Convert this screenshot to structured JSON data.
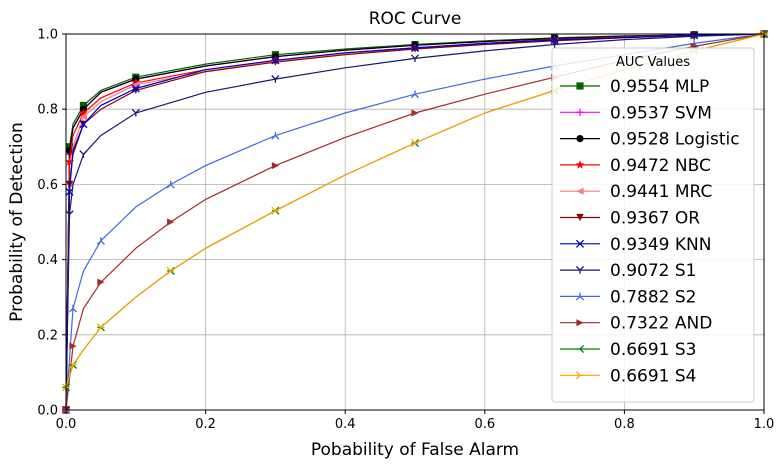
{
  "chart_data": {
    "type": "line",
    "title": "ROC Curve",
    "xlabel": "Pobability of False Alarm",
    "ylabel": "Probability of Detection",
    "xlim": [
      0,
      1
    ],
    "ylim": [
      0,
      1
    ],
    "xticks": [
      "0.0",
      "0.2",
      "0.4",
      "0.6",
      "0.8",
      "1.0"
    ],
    "yticks": [
      "0.0",
      "0.2",
      "0.4",
      "0.6",
      "0.8",
      "1.0"
    ],
    "grid": true,
    "legend": {
      "title": "AUC Values",
      "placement": "right"
    },
    "series": [
      {
        "name": "0.9554 MLP",
        "color": "#006400",
        "marker": "square",
        "x": [
          0,
          0.005,
          0.01,
          0.025,
          0.05,
          0.1,
          0.2,
          0.3,
          0.4,
          0.5,
          0.6,
          0.7,
          0.8,
          0.9,
          1.0
        ],
        "y": [
          0,
          0.7,
          0.76,
          0.81,
          0.85,
          0.885,
          0.92,
          0.945,
          0.96,
          0.972,
          0.982,
          0.99,
          0.995,
          0.998,
          1.0
        ]
      },
      {
        "name": "0.9537 SVM",
        "color": "#ff00ff",
        "marker": "plus",
        "x": [
          0,
          0.005,
          0.01,
          0.025,
          0.05,
          0.1,
          0.2,
          0.3,
          0.4,
          0.5,
          0.6,
          0.7,
          0.8,
          0.9,
          1.0
        ],
        "y": [
          0,
          0.68,
          0.75,
          0.8,
          0.845,
          0.88,
          0.915,
          0.94,
          0.957,
          0.97,
          0.98,
          0.988,
          0.994,
          0.998,
          1.0
        ]
      },
      {
        "name": "0.9528 Logistic",
        "color": "#000000",
        "marker": "circle",
        "x": [
          0,
          0.005,
          0.01,
          0.025,
          0.05,
          0.1,
          0.2,
          0.3,
          0.4,
          0.5,
          0.6,
          0.7,
          0.8,
          0.9,
          1.0
        ],
        "y": [
          0,
          0.69,
          0.75,
          0.8,
          0.845,
          0.88,
          0.915,
          0.94,
          0.957,
          0.97,
          0.98,
          0.988,
          0.994,
          0.998,
          1.0
        ]
      },
      {
        "name": "0.9472 NBC",
        "color": "#ff0000",
        "marker": "star",
        "x": [
          0,
          0.005,
          0.01,
          0.025,
          0.05,
          0.1,
          0.2,
          0.3,
          0.4,
          0.5,
          0.6,
          0.7,
          0.8,
          0.9,
          1.0
        ],
        "y": [
          0,
          0.66,
          0.73,
          0.79,
          0.83,
          0.87,
          0.905,
          0.93,
          0.95,
          0.963,
          0.975,
          0.985,
          0.992,
          0.997,
          1.0
        ]
      },
      {
        "name": "0.9441 MRC",
        "color": "#f08080",
        "marker": "triangle-left",
        "x": [
          0,
          0.005,
          0.01,
          0.025,
          0.05,
          0.1,
          0.2,
          0.3,
          0.4,
          0.5,
          0.6,
          0.7,
          0.8,
          0.9,
          1.0
        ],
        "y": [
          0,
          0.6,
          0.7,
          0.78,
          0.82,
          0.865,
          0.9,
          0.928,
          0.948,
          0.962,
          0.974,
          0.984,
          0.991,
          0.997,
          1.0
        ]
      },
      {
        "name": "0.9367 OR",
        "color": "#8b0000",
        "marker": "triangle-down",
        "x": [
          0,
          0.005,
          0.01,
          0.025,
          0.05,
          0.1,
          0.2,
          0.3,
          0.4,
          0.5,
          0.6,
          0.7,
          0.8,
          0.9,
          1.0
        ],
        "y": [
          0,
          0.6,
          0.68,
          0.76,
          0.8,
          0.85,
          0.9,
          0.925,
          0.945,
          0.96,
          0.972,
          0.982,
          0.99,
          0.996,
          1.0
        ]
      },
      {
        "name": "0.9349 KNN",
        "color": "#0000cd",
        "marker": "x",
        "x": [
          0,
          0.005,
          0.01,
          0.025,
          0.05,
          0.1,
          0.2,
          0.3,
          0.4,
          0.5,
          0.6,
          0.7,
          0.8,
          0.9,
          1.0
        ],
        "y": [
          0,
          0.58,
          0.69,
          0.76,
          0.81,
          0.855,
          0.905,
          0.93,
          0.95,
          0.963,
          0.975,
          0.984,
          0.991,
          0.997,
          1.0
        ]
      },
      {
        "name": "0.9072 S1",
        "color": "#191970",
        "marker": "tri-down",
        "x": [
          0,
          0.005,
          0.01,
          0.025,
          0.05,
          0.1,
          0.2,
          0.3,
          0.4,
          0.5,
          0.6,
          0.7,
          0.8,
          0.9,
          1.0
        ],
        "y": [
          0,
          0.52,
          0.6,
          0.68,
          0.73,
          0.79,
          0.845,
          0.88,
          0.91,
          0.935,
          0.955,
          0.972,
          0.985,
          0.994,
          1.0
        ]
      },
      {
        "name": "0.7882 S2",
        "color": "#4169e1",
        "marker": "tri-up",
        "x": [
          0,
          0.01,
          0.025,
          0.05,
          0.1,
          0.15,
          0.2,
          0.3,
          0.4,
          0.5,
          0.6,
          0.7,
          0.8,
          0.9,
          1.0
        ],
        "y": [
          0,
          0.27,
          0.37,
          0.45,
          0.54,
          0.6,
          0.65,
          0.73,
          0.79,
          0.84,
          0.88,
          0.915,
          0.945,
          0.975,
          1.0
        ]
      },
      {
        "name": "0.7322 AND",
        "color": "#a52a2a",
        "marker": "triangle-right",
        "x": [
          0,
          0.01,
          0.025,
          0.05,
          0.1,
          0.15,
          0.2,
          0.3,
          0.4,
          0.5,
          0.6,
          0.7,
          0.8,
          0.9,
          1.0
        ],
        "y": [
          0,
          0.17,
          0.27,
          0.34,
          0.43,
          0.5,
          0.56,
          0.65,
          0.725,
          0.79,
          0.84,
          0.885,
          0.93,
          0.967,
          1.0
        ]
      },
      {
        "name": "0.6691 S3",
        "color": "#008000",
        "marker": "tri-left",
        "x": [
          0,
          0.01,
          0.025,
          0.05,
          0.1,
          0.15,
          0.2,
          0.3,
          0.4,
          0.5,
          0.6,
          0.7,
          0.8,
          0.9,
          1.0
        ],
        "y": [
          0.06,
          0.12,
          0.16,
          0.22,
          0.3,
          0.37,
          0.43,
          0.53,
          0.625,
          0.71,
          0.79,
          0.85,
          0.905,
          0.955,
          1.0
        ]
      },
      {
        "name": "0.6691 S4",
        "color": "#ffa500",
        "marker": "tri-right",
        "x": [
          0,
          0.01,
          0.025,
          0.05,
          0.1,
          0.15,
          0.2,
          0.3,
          0.4,
          0.5,
          0.6,
          0.7,
          0.8,
          0.9,
          1.0
        ],
        "y": [
          0.06,
          0.12,
          0.16,
          0.22,
          0.3,
          0.37,
          0.43,
          0.53,
          0.625,
          0.71,
          0.79,
          0.85,
          0.905,
          0.955,
          1.0
        ]
      }
    ]
  }
}
